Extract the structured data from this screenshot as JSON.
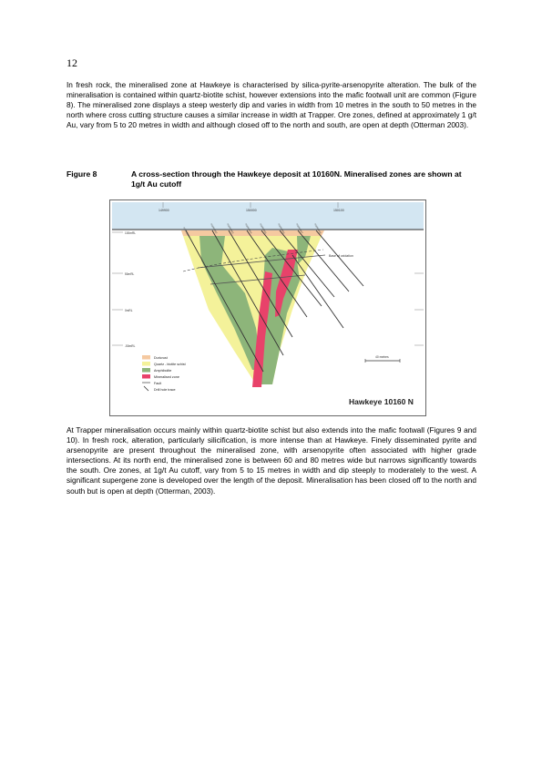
{
  "page_number": "12",
  "paragraph_1": "In fresh rock, the mineralised zone at Hawkeye is characterised by silica-pyrite-arsenopyrite alteration. The bulk of the mineralisation is contained within quartz-biotite schist, however extensions into the mafic footwall unit are common (Figure 8). The mineralised zone displays a steep westerly dip and varies in width from 10 metres in the south to 50 metres in the north where cross cutting structure causes a similar increase in width at Trapper. Ore zones, defined at approximately 1 g/t Au, vary from 5 to 20 metres in width and although closed off to the north and south, are open at depth (Otterman 2003).",
  "figure": {
    "number": "Figure 8",
    "caption": "A cross-section through the Hawkeye deposit at 10160N. Mineralised zones are shown at 1g/t Au cutoff",
    "title": "Hawkeye 10160 N",
    "easting_labels": [
      "149900",
      "150000",
      "150100"
    ],
    "depth_labels": [
      "100mRL",
      "50mRL",
      "0mRL",
      "-50mRL"
    ],
    "zone_label": "Base of oxidation",
    "scale_label": "40 metres",
    "legend": [
      {
        "label": "Duricrust",
        "color": "#f5c9a0",
        "type": "swatch"
      },
      {
        "label": "Quartz - biotite schist",
        "color": "#f4f29a",
        "type": "swatch"
      },
      {
        "label": "Amphibolite",
        "color": "#8db57a",
        "type": "swatch"
      },
      {
        "label": "Mineralised zone",
        "color": "#e8426a",
        "type": "swatch"
      },
      {
        "label": "Fault",
        "color": "#555555",
        "type": "line"
      },
      {
        "label": "Drill hole trace",
        "color": "#333333",
        "type": "drill"
      }
    ]
  },
  "paragraph_2": "At Trapper mineralisation occurs mainly within quartz-biotite schist but also extends into the mafic footwall (Figures 9 and 10). In fresh rock, alteration, particularly silicification, is more intense than at Hawkeye. Finely disseminated pyrite and arsenopyrite are present throughout the mineralised zone, with arsenopyrite often associated with higher grade intersections. At its north end, the mineralised zone is between 60 and 80 metres wide but narrows significantly towards the south. Ore zones, at 1g/t Au cutoff, vary from 5 to 15 metres in width and dip steeply to moderately to the west. A significant supergene zone is developed over the length of the deposit. Mineralisation has been closed off to the north and south but is open at depth (Otterman, 2003)."
}
